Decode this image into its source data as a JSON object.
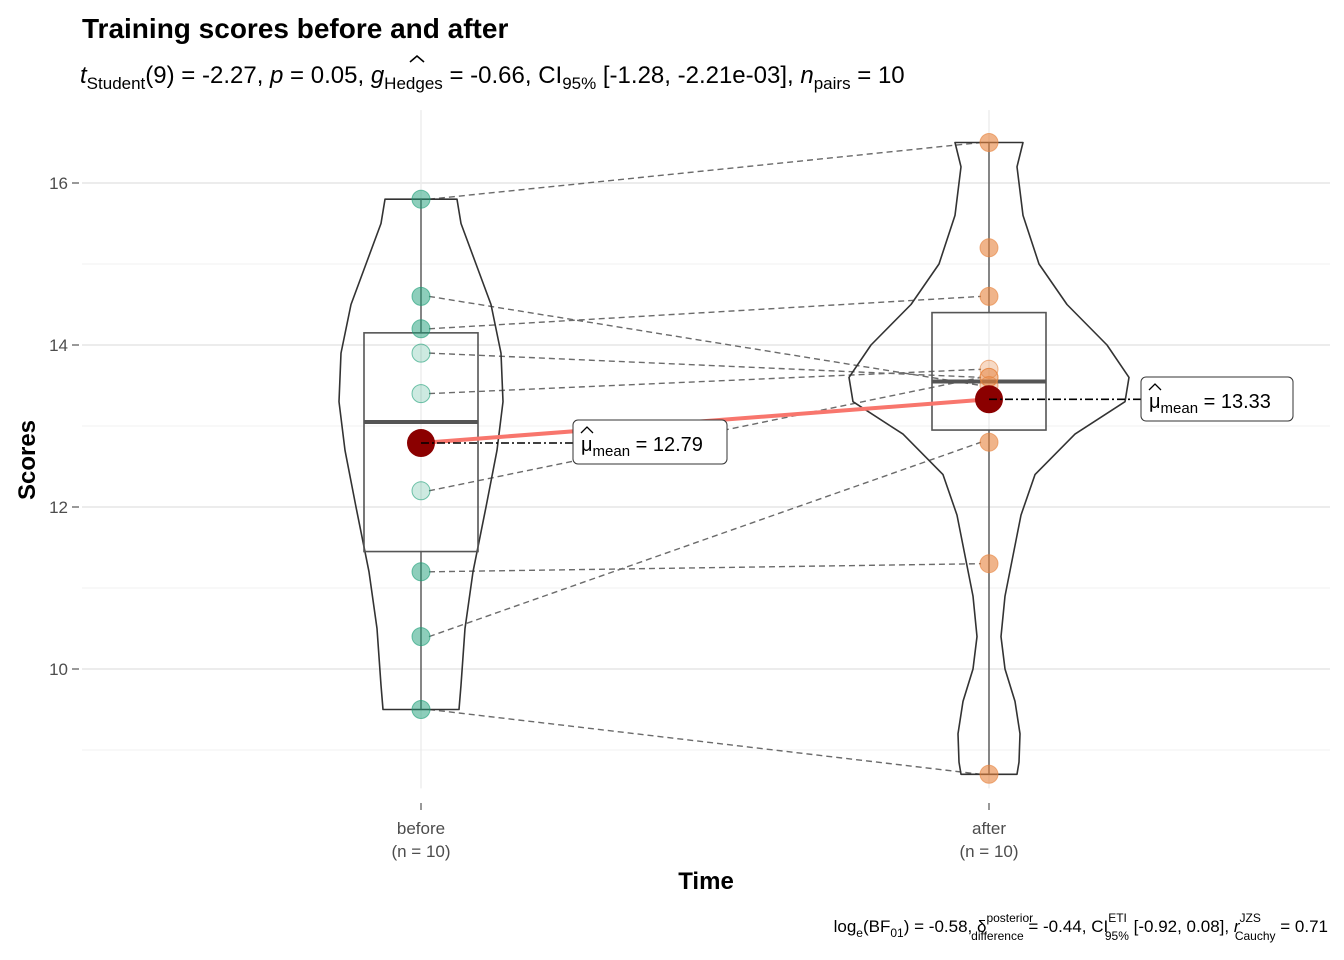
{
  "chart_data": {
    "type": "violin",
    "title": "Training scores before and after",
    "subtitle": {
      "t_label": "t",
      "t_sub": "Student",
      "df": "(9)",
      "t_value": "-2.27",
      "p_label": "p",
      "p_value": "0.05",
      "g_label": "g",
      "g_sub": "Hedges",
      "g_value": "-0.66",
      "ci_label": "CI",
      "ci_sub": "95%",
      "ci_value": "[-1.28, -2.21e-03]",
      "n_label": "n",
      "n_sub": "pairs",
      "n_value": "10"
    },
    "caption": {
      "bf_label": "log",
      "bf_sub": "e",
      "bf_arg": "BF",
      "bf_arg_sub": "01",
      "bf_value": "-0.58",
      "delta_label": "δ",
      "delta_sup": "posterior",
      "delta_sub": "difference",
      "delta_value": "-0.44",
      "ci_label": "CI",
      "ci_sup": "ETI",
      "ci_sub": "95%",
      "ci_value": "[-0.92, 0.08]",
      "r_label": "r",
      "r_sup": "JZS",
      "r_sub": "Cauchy",
      "r_value": "0.71"
    },
    "xlabel": "Time",
    "ylabel": "Scores",
    "ylim": [
      8.6,
      16.9
    ],
    "yticks": [
      10,
      12,
      14,
      16
    ],
    "categories": [
      "before",
      "after"
    ],
    "category_n": [
      "(n = 10)",
      "(n = 10)"
    ],
    "series": [
      {
        "category": "before",
        "values": [
          15.8,
          14.6,
          14.2,
          13.9,
          13.4,
          12.2,
          11.2,
          10.4,
          9.5,
          12.8
        ],
        "mean": 12.79,
        "mean_label": "12.79",
        "box": {
          "q1": 11.45,
          "median": 13.05,
          "q3": 14.15,
          "min": 9.5,
          "max": 15.8
        },
        "color": "#1B9E77"
      },
      {
        "category": "after",
        "values": [
          16.5,
          13.5,
          14.6,
          13.6,
          13.7,
          13.6,
          11.3,
          12.8,
          8.7,
          15.2
        ],
        "mean": 13.33,
        "mean_label": "13.33",
        "box": {
          "q1": 12.95,
          "median": 13.55,
          "q3": 14.4,
          "min": 8.7,
          "max": 16.5
        },
        "color": "#E6823C"
      }
    ],
    "mean_label_prefix": "μ",
    "mean_label_sub": "mean",
    "colors": {
      "mean_point": "#8B0000",
      "mean_line": "#F8766D",
      "grid": "#ebebeb"
    }
  }
}
